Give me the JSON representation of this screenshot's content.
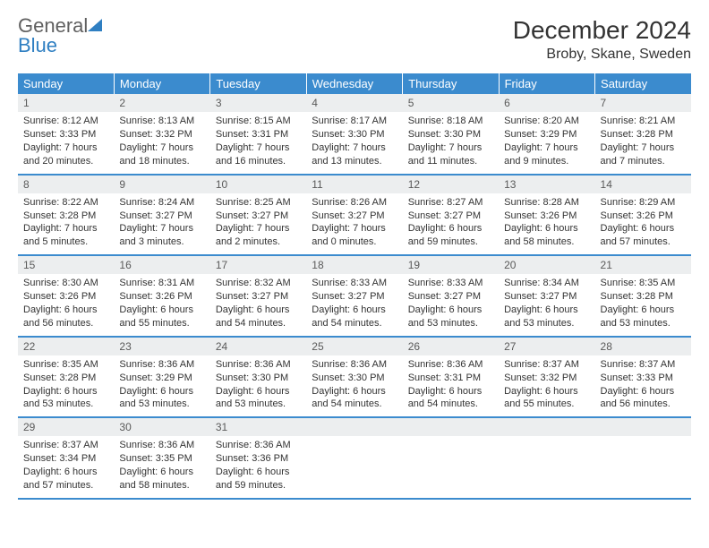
{
  "brand": {
    "part1": "General",
    "part2": "Blue"
  },
  "title": "December 2024",
  "location": "Broby, Skane, Sweden",
  "colors": {
    "header_bg": "#3b8bce",
    "header_text": "#ffffff",
    "daynum_bg": "#eceeef",
    "row_border": "#3b8bce",
    "logo_gray": "#606060",
    "logo_blue": "#2f7fc2",
    "body_text": "#333333",
    "page_bg": "#ffffff"
  },
  "weekdays": [
    "Sunday",
    "Monday",
    "Tuesday",
    "Wednesday",
    "Thursday",
    "Friday",
    "Saturday"
  ],
  "weeks": [
    [
      {
        "n": "1",
        "sr": "Sunrise: 8:12 AM",
        "ss": "Sunset: 3:33 PM",
        "dl": "Daylight: 7 hours and 20 minutes."
      },
      {
        "n": "2",
        "sr": "Sunrise: 8:13 AM",
        "ss": "Sunset: 3:32 PM",
        "dl": "Daylight: 7 hours and 18 minutes."
      },
      {
        "n": "3",
        "sr": "Sunrise: 8:15 AM",
        "ss": "Sunset: 3:31 PM",
        "dl": "Daylight: 7 hours and 16 minutes."
      },
      {
        "n": "4",
        "sr": "Sunrise: 8:17 AM",
        "ss": "Sunset: 3:30 PM",
        "dl": "Daylight: 7 hours and 13 minutes."
      },
      {
        "n": "5",
        "sr": "Sunrise: 8:18 AM",
        "ss": "Sunset: 3:30 PM",
        "dl": "Daylight: 7 hours and 11 minutes."
      },
      {
        "n": "6",
        "sr": "Sunrise: 8:20 AM",
        "ss": "Sunset: 3:29 PM",
        "dl": "Daylight: 7 hours and 9 minutes."
      },
      {
        "n": "7",
        "sr": "Sunrise: 8:21 AM",
        "ss": "Sunset: 3:28 PM",
        "dl": "Daylight: 7 hours and 7 minutes."
      }
    ],
    [
      {
        "n": "8",
        "sr": "Sunrise: 8:22 AM",
        "ss": "Sunset: 3:28 PM",
        "dl": "Daylight: 7 hours and 5 minutes."
      },
      {
        "n": "9",
        "sr": "Sunrise: 8:24 AM",
        "ss": "Sunset: 3:27 PM",
        "dl": "Daylight: 7 hours and 3 minutes."
      },
      {
        "n": "10",
        "sr": "Sunrise: 8:25 AM",
        "ss": "Sunset: 3:27 PM",
        "dl": "Daylight: 7 hours and 2 minutes."
      },
      {
        "n": "11",
        "sr": "Sunrise: 8:26 AM",
        "ss": "Sunset: 3:27 PM",
        "dl": "Daylight: 7 hours and 0 minutes."
      },
      {
        "n": "12",
        "sr": "Sunrise: 8:27 AM",
        "ss": "Sunset: 3:27 PM",
        "dl": "Daylight: 6 hours and 59 minutes."
      },
      {
        "n": "13",
        "sr": "Sunrise: 8:28 AM",
        "ss": "Sunset: 3:26 PM",
        "dl": "Daylight: 6 hours and 58 minutes."
      },
      {
        "n": "14",
        "sr": "Sunrise: 8:29 AM",
        "ss": "Sunset: 3:26 PM",
        "dl": "Daylight: 6 hours and 57 minutes."
      }
    ],
    [
      {
        "n": "15",
        "sr": "Sunrise: 8:30 AM",
        "ss": "Sunset: 3:26 PM",
        "dl": "Daylight: 6 hours and 56 minutes."
      },
      {
        "n": "16",
        "sr": "Sunrise: 8:31 AM",
        "ss": "Sunset: 3:26 PM",
        "dl": "Daylight: 6 hours and 55 minutes."
      },
      {
        "n": "17",
        "sr": "Sunrise: 8:32 AM",
        "ss": "Sunset: 3:27 PM",
        "dl": "Daylight: 6 hours and 54 minutes."
      },
      {
        "n": "18",
        "sr": "Sunrise: 8:33 AM",
        "ss": "Sunset: 3:27 PM",
        "dl": "Daylight: 6 hours and 54 minutes."
      },
      {
        "n": "19",
        "sr": "Sunrise: 8:33 AM",
        "ss": "Sunset: 3:27 PM",
        "dl": "Daylight: 6 hours and 53 minutes."
      },
      {
        "n": "20",
        "sr": "Sunrise: 8:34 AM",
        "ss": "Sunset: 3:27 PM",
        "dl": "Daylight: 6 hours and 53 minutes."
      },
      {
        "n": "21",
        "sr": "Sunrise: 8:35 AM",
        "ss": "Sunset: 3:28 PM",
        "dl": "Daylight: 6 hours and 53 minutes."
      }
    ],
    [
      {
        "n": "22",
        "sr": "Sunrise: 8:35 AM",
        "ss": "Sunset: 3:28 PM",
        "dl": "Daylight: 6 hours and 53 minutes."
      },
      {
        "n": "23",
        "sr": "Sunrise: 8:36 AM",
        "ss": "Sunset: 3:29 PM",
        "dl": "Daylight: 6 hours and 53 minutes."
      },
      {
        "n": "24",
        "sr": "Sunrise: 8:36 AM",
        "ss": "Sunset: 3:30 PM",
        "dl": "Daylight: 6 hours and 53 minutes."
      },
      {
        "n": "25",
        "sr": "Sunrise: 8:36 AM",
        "ss": "Sunset: 3:30 PM",
        "dl": "Daylight: 6 hours and 54 minutes."
      },
      {
        "n": "26",
        "sr": "Sunrise: 8:36 AM",
        "ss": "Sunset: 3:31 PM",
        "dl": "Daylight: 6 hours and 54 minutes."
      },
      {
        "n": "27",
        "sr": "Sunrise: 8:37 AM",
        "ss": "Sunset: 3:32 PM",
        "dl": "Daylight: 6 hours and 55 minutes."
      },
      {
        "n": "28",
        "sr": "Sunrise: 8:37 AM",
        "ss": "Sunset: 3:33 PM",
        "dl": "Daylight: 6 hours and 56 minutes."
      }
    ],
    [
      {
        "n": "29",
        "sr": "Sunrise: 8:37 AM",
        "ss": "Sunset: 3:34 PM",
        "dl": "Daylight: 6 hours and 57 minutes."
      },
      {
        "n": "30",
        "sr": "Sunrise: 8:36 AM",
        "ss": "Sunset: 3:35 PM",
        "dl": "Daylight: 6 hours and 58 minutes."
      },
      {
        "n": "31",
        "sr": "Sunrise: 8:36 AM",
        "ss": "Sunset: 3:36 PM",
        "dl": "Daylight: 6 hours and 59 minutes."
      },
      {
        "n": "",
        "sr": "",
        "ss": "",
        "dl": ""
      },
      {
        "n": "",
        "sr": "",
        "ss": "",
        "dl": ""
      },
      {
        "n": "",
        "sr": "",
        "ss": "",
        "dl": ""
      },
      {
        "n": "",
        "sr": "",
        "ss": "",
        "dl": ""
      }
    ]
  ]
}
